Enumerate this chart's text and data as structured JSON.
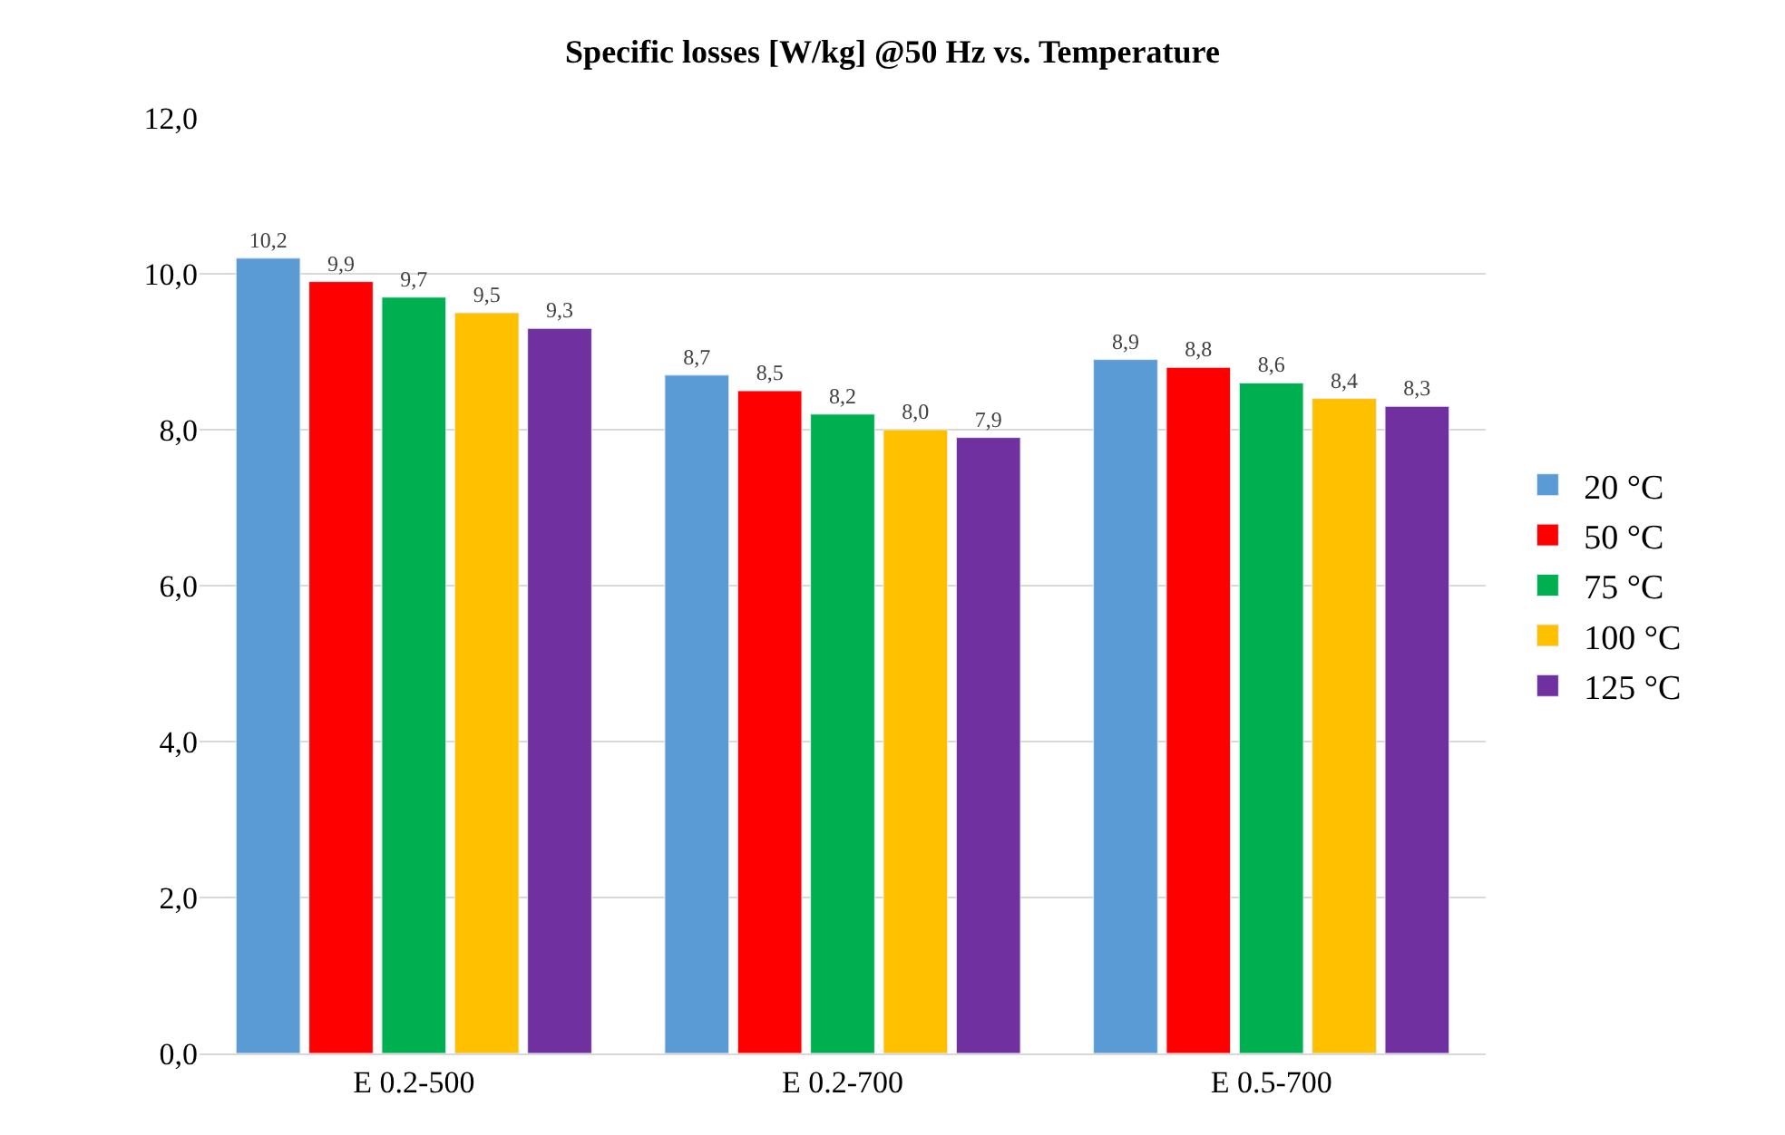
{
  "chart_data": {
    "type": "bar",
    "title": "Specific losses [W/kg] @50 Hz vs. Temperature",
    "categories": [
      "E 0.2-500",
      "E 0.2-700",
      "E 0.5-700"
    ],
    "series": [
      {
        "name": "20 °C",
        "color": "#5b9bd5",
        "values": [
          10.2,
          8.7,
          8.9
        ],
        "value_labels": [
          "10,2",
          "8,7",
          "8,9"
        ]
      },
      {
        "name": "50 °C",
        "color": "#ff0000",
        "values": [
          9.9,
          8.5,
          8.8
        ],
        "value_labels": [
          "9,9",
          "8,5",
          "8,8"
        ]
      },
      {
        "name": "75 °C",
        "color": "#00b050",
        "values": [
          9.7,
          8.2,
          8.6
        ],
        "value_labels": [
          "9,7",
          "8,2",
          "8,6"
        ]
      },
      {
        "name": "100 °C",
        "color": "#ffc000",
        "values": [
          9.5,
          8.0,
          8.4
        ],
        "value_labels": [
          "9,5",
          "8,0",
          "8,4"
        ]
      },
      {
        "name": "125 °C",
        "color": "#7030a0",
        "values": [
          9.3,
          7.9,
          8.3
        ],
        "value_labels": [
          "9,3",
          "7,9",
          "8,3"
        ]
      }
    ],
    "ylim": [
      0,
      12
    ],
    "yticks": [
      {
        "value": 0,
        "label": "0,0"
      },
      {
        "value": 2,
        "label": "2,0"
      },
      {
        "value": 4,
        "label": "4,0"
      },
      {
        "value": 6,
        "label": "6,0"
      },
      {
        "value": 8,
        "label": "8,0"
      },
      {
        "value": 10,
        "label": "10,0"
      },
      {
        "value": 12,
        "label": "12,0"
      }
    ],
    "grid": "y",
    "legend": "right"
  }
}
